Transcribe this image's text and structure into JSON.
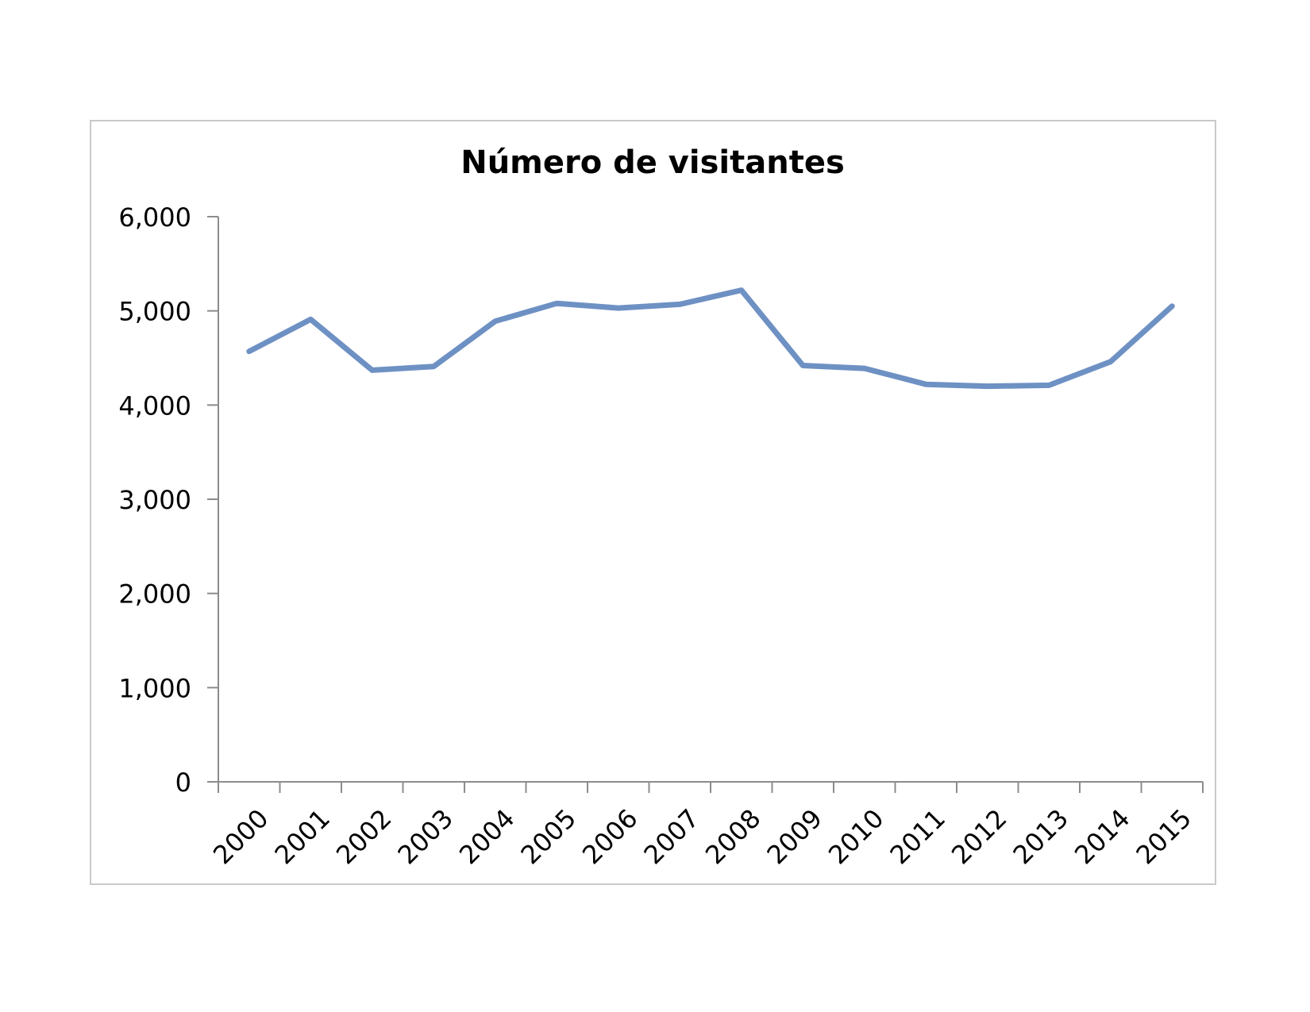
{
  "chart_data": {
    "type": "line",
    "title": "Número de visitantes",
    "xlabel": "",
    "ylabel": "",
    "categories": [
      "2000",
      "2001",
      "2002",
      "2003",
      "2004",
      "2005",
      "2006",
      "2007",
      "2008",
      "2009",
      "2010",
      "2011",
      "2012",
      "2013",
      "2014",
      "2015"
    ],
    "series": [
      {
        "values": [
          4570,
          4910,
          4370,
          4410,
          4890,
          5080,
          5030,
          5070,
          5220,
          4420,
          4390,
          4220,
          4200,
          4210,
          4460,
          5050
        ]
      }
    ],
    "ylim": [
      0,
      6000
    ],
    "yticks": [
      0,
      1000,
      2000,
      3000,
      4000,
      5000,
      6000
    ],
    "ytick_labels": [
      "0",
      "1,000",
      "2,000",
      "3,000",
      "4,000",
      "5,000",
      "6,000"
    ],
    "grid": false,
    "legend": "none",
    "colors": {
      "line": "#6e91c4",
      "axis": "#8c8c8c",
      "text": "#000000"
    }
  }
}
